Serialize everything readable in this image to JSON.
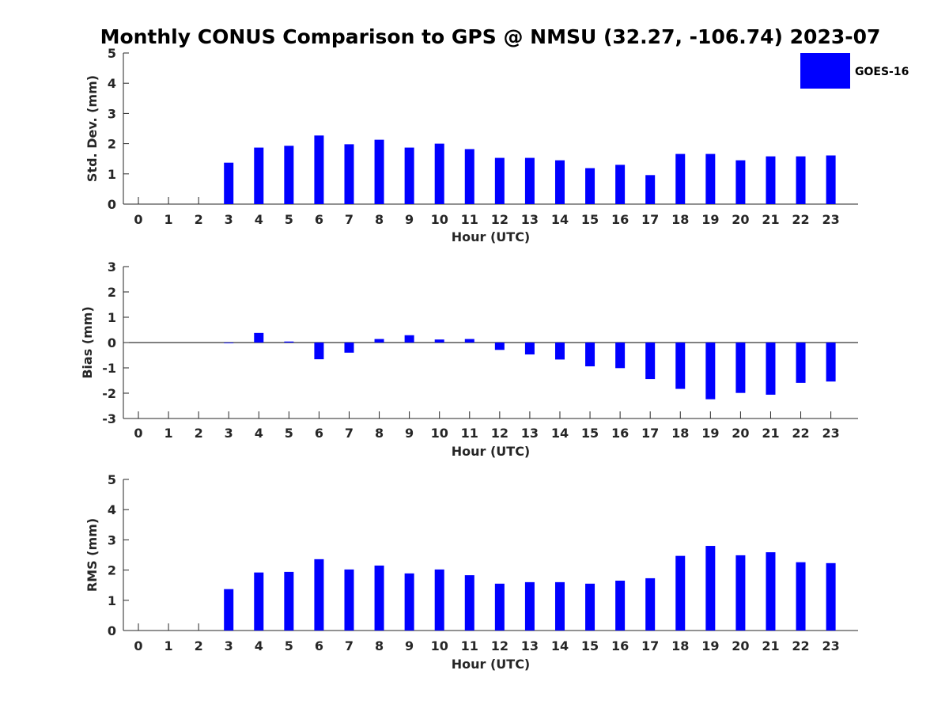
{
  "title": "Monthly CONUS Comparison to GPS @ NMSU (32.27, -106.74) 2023-07",
  "legend": {
    "label": "GOES-16",
    "color": "#0000ff"
  },
  "chart_data": [
    {
      "type": "bar",
      "title": "Monthly CONUS Comparison to GPS @ NMSU (32.27, -106.74) 2023-07",
      "xlabel": "Hour (UTC)",
      "ylabel": "Std. Dev. (mm)",
      "categories": [
        "0",
        "1",
        "2",
        "3",
        "4",
        "5",
        "6",
        "7",
        "8",
        "9",
        "10",
        "11",
        "12",
        "13",
        "14",
        "15",
        "16",
        "17",
        "18",
        "19",
        "20",
        "21",
        "22",
        "23"
      ],
      "series": [
        {
          "name": "GOES-16",
          "values": [
            null,
            null,
            null,
            1.37,
            1.87,
            1.93,
            2.27,
            1.98,
            2.13,
            1.87,
            2.0,
            1.82,
            1.53,
            1.53,
            1.45,
            1.19,
            1.3,
            0.96,
            1.66,
            1.66,
            1.45,
            1.58,
            1.58,
            1.61
          ]
        }
      ],
      "ylim": [
        0,
        5
      ],
      "yticks": [
        "0",
        "1",
        "2",
        "3",
        "4",
        "5"
      ]
    },
    {
      "type": "bar",
      "xlabel": "Hour (UTC)",
      "ylabel": "Bias (mm)",
      "categories": [
        "0",
        "1",
        "2",
        "3",
        "4",
        "5",
        "6",
        "7",
        "8",
        "9",
        "10",
        "11",
        "12",
        "13",
        "14",
        "15",
        "16",
        "17",
        "18",
        "19",
        "20",
        "21",
        "22",
        "23"
      ],
      "series": [
        {
          "name": "GOES-16",
          "values": [
            null,
            null,
            null,
            -0.02,
            0.38,
            0.04,
            -0.66,
            -0.4,
            0.14,
            0.29,
            0.12,
            0.14,
            -0.29,
            -0.47,
            -0.67,
            -0.94,
            -1.01,
            -1.44,
            -1.83,
            -2.24,
            -1.99,
            -2.06,
            -1.59,
            -1.54
          ]
        }
      ],
      "ylim": [
        -3,
        3
      ],
      "yticks": [
        "-3",
        "-2",
        "-1",
        "0",
        "1",
        "2",
        "3"
      ]
    },
    {
      "type": "bar",
      "xlabel": "Hour (UTC)",
      "ylabel": "RMS (mm)",
      "categories": [
        "0",
        "1",
        "2",
        "3",
        "4",
        "5",
        "6",
        "7",
        "8",
        "9",
        "10",
        "11",
        "12",
        "13",
        "14",
        "15",
        "16",
        "17",
        "18",
        "19",
        "20",
        "21",
        "22",
        "23"
      ],
      "series": [
        {
          "name": "GOES-16",
          "values": [
            null,
            null,
            null,
            1.37,
            1.92,
            1.94,
            2.36,
            2.02,
            2.15,
            1.89,
            2.02,
            1.83,
            1.55,
            1.6,
            1.6,
            1.55,
            1.65,
            1.73,
            2.47,
            2.8,
            2.49,
            2.59,
            2.26,
            2.23
          ]
        }
      ],
      "ylim": [
        0,
        5
      ],
      "yticks": [
        "0",
        "1",
        "2",
        "3",
        "4",
        "5"
      ]
    }
  ]
}
